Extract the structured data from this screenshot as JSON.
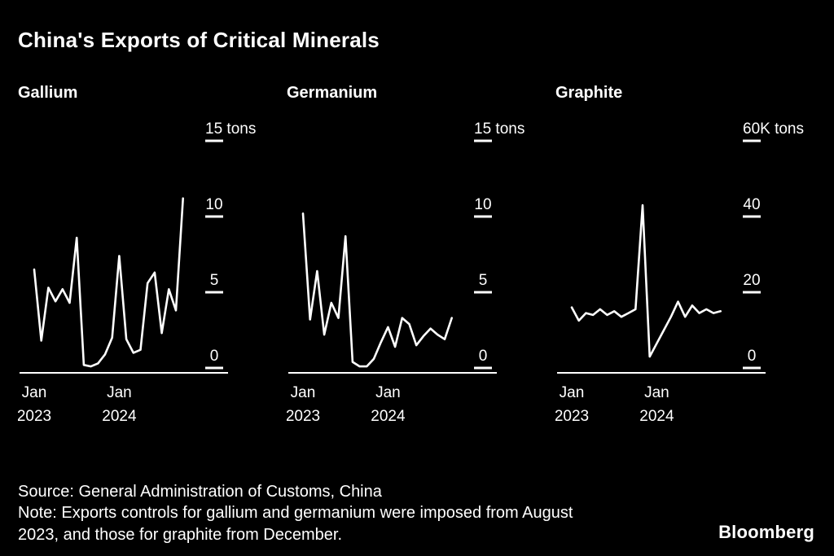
{
  "page": {
    "background": "#000000",
    "foreground": "#ffffff"
  },
  "header": {
    "title": "China's Exports of Critical Minerals"
  },
  "chart_data": [
    {
      "type": "line",
      "title": "Gallium",
      "unit": "tons",
      "line_color": "#ffffff",
      "ylim": [
        0,
        15
      ],
      "grid": false,
      "legend": false,
      "yticks": [
        {
          "value": 15,
          "label": "15 tons"
        },
        {
          "value": 10,
          "label": "10"
        },
        {
          "value": 5,
          "label": "5"
        },
        {
          "value": 0,
          "label": "0"
        }
      ],
      "xticks": [
        {
          "index": 0,
          "month": "Jan",
          "year": "2023"
        },
        {
          "index": 12,
          "month": "Jan",
          "year": "2024"
        }
      ],
      "x": [
        "Jan 2023",
        "Feb 2023",
        "Mar 2023",
        "Apr 2023",
        "May 2023",
        "Jun 2023",
        "Jul 2023",
        "Aug 2023",
        "Sep 2023",
        "Oct 2023",
        "Nov 2023",
        "Dec 2023",
        "Jan 2024",
        "Feb 2024",
        "Mar 2024",
        "Apr 2024",
        "May 2024",
        "Jun 2024",
        "Jul 2024",
        "Aug 2024",
        "Sep 2024",
        "Oct 2024"
      ],
      "values": [
        6.5,
        1.8,
        5.3,
        4.4,
        5.2,
        4.3,
        8.6,
        0.2,
        0.1,
        0.3,
        0.9,
        2.0,
        7.4,
        1.9,
        1.0,
        1.2,
        5.6,
        6.3,
        2.3,
        5.2,
        3.8,
        11.2
      ]
    },
    {
      "type": "line",
      "title": "Germanium",
      "unit": "tons",
      "line_color": "#ffffff",
      "ylim": [
        0,
        15
      ],
      "grid": false,
      "legend": false,
      "yticks": [
        {
          "value": 15,
          "label": "15 tons"
        },
        {
          "value": 10,
          "label": "10"
        },
        {
          "value": 5,
          "label": "5"
        },
        {
          "value": 0,
          "label": "0"
        }
      ],
      "xticks": [
        {
          "index": 0,
          "month": "Jan",
          "year": "2023"
        },
        {
          "index": 12,
          "month": "Jan",
          "year": "2024"
        }
      ],
      "x": [
        "Jan 2023",
        "Feb 2023",
        "Mar 2023",
        "Apr 2023",
        "May 2023",
        "Jun 2023",
        "Jul 2023",
        "Aug 2023",
        "Sep 2023",
        "Oct 2023",
        "Nov 2023",
        "Dec 2023",
        "Jan 2024",
        "Feb 2024",
        "Mar 2024",
        "Apr 2024",
        "May 2024",
        "Jun 2024",
        "Jul 2024",
        "Aug 2024",
        "Sep 2024",
        "Oct 2024"
      ],
      "values": [
        10.2,
        3.2,
        6.4,
        2.2,
        4.3,
        3.3,
        8.7,
        0.4,
        0.1,
        0.1,
        0.6,
        1.7,
        2.7,
        1.4,
        3.3,
        2.9,
        1.5,
        2.1,
        2.6,
        2.2,
        1.9,
        3.3
      ]
    },
    {
      "type": "line",
      "title": "Graphite",
      "unit": "K tons",
      "line_color": "#ffffff",
      "ylim": [
        0,
        60
      ],
      "grid": false,
      "legend": false,
      "yticks": [
        {
          "value": 60,
          "label": "60K tons"
        },
        {
          "value": 40,
          "label": "40"
        },
        {
          "value": 20,
          "label": "20"
        },
        {
          "value": 0,
          "label": "0"
        }
      ],
      "xticks": [
        {
          "index": 0,
          "month": "Jan",
          "year": "2023"
        },
        {
          "index": 12,
          "month": "Jan",
          "year": "2024"
        }
      ],
      "x": [
        "Jan 2023",
        "Feb 2023",
        "Mar 2023",
        "Apr 2023",
        "May 2023",
        "Jun 2023",
        "Jul 2023",
        "Aug 2023",
        "Sep 2023",
        "Oct 2023",
        "Nov 2023",
        "Dec 2023",
        "Jan 2024",
        "Feb 2024",
        "Mar 2024",
        "Apr 2024",
        "May 2024",
        "Jun 2024",
        "Jul 2024",
        "Aug 2024",
        "Sep 2024",
        "Oct 2024"
      ],
      "values": [
        16,
        12.5,
        14.5,
        14,
        15.5,
        14,
        15,
        13.5,
        14.5,
        15.5,
        43,
        3,
        6.5,
        10,
        13.5,
        17.5,
        13.5,
        16.5,
        14.5,
        15.5,
        14.5,
        15
      ]
    }
  ],
  "footer": {
    "source": "Source: General Administration of Customs, China",
    "note_lines": [
      "Note: Exports controls for gallium and germanium were imposed from August",
      "2023, and those for graphite from December."
    ],
    "brand": "Bloomberg"
  }
}
